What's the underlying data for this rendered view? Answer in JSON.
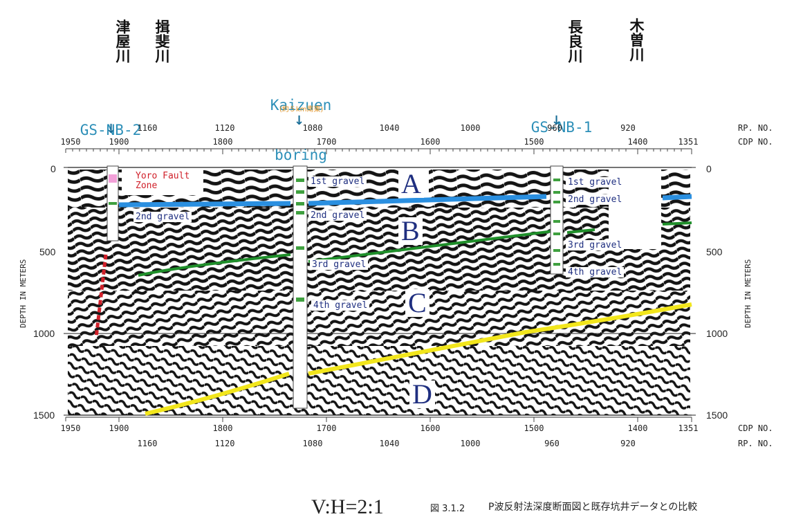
{
  "rivers": [
    {
      "label": "津屋川"
    },
    {
      "label": "揖斐川"
    },
    {
      "label": "長良川"
    },
    {
      "label": "木曽川"
    }
  ],
  "borings": [
    {
      "name": "GS-NB-2",
      "sub": "boring"
    },
    {
      "name": "Kaizuen",
      "sub": "boring",
      "note": "(約５km南東)"
    },
    {
      "name": "GS-NB-1",
      "sub": "boring"
    }
  ],
  "axes": {
    "rp_no_label": "RP. NO.",
    "cdp_no_label": "CDP NO.",
    "depth_title": "DEPTH IN METERS",
    "top_rp_ticks": [
      "1160",
      "1120",
      "1080",
      "1040",
      "1000",
      "960",
      "920",
      "1351"
    ],
    "top_cdp_ticks": [
      "1950",
      "1900",
      "1800",
      "1700",
      "1600",
      "1500",
      "1400"
    ],
    "bottom_cdp_ticks": [
      "1950",
      "1900",
      "1800",
      "1700",
      "1600",
      "1500",
      "1400",
      "1351"
    ],
    "bottom_rp_ticks": [
      "1160",
      "1120",
      "1080",
      "1040",
      "1000",
      "960",
      "920"
    ],
    "depth_ticks": [
      "0",
      "500",
      "1000",
      "1500"
    ]
  },
  "layers": {
    "left": [
      "2nd gravel"
    ],
    "middle": [
      "1st gravel",
      "2nd gravel",
      "3rd gravel",
      "4th gravel"
    ],
    "right": [
      "1st gravel",
      "2nd gravel",
      "3rd gravel",
      "4th gravel"
    ]
  },
  "zones": [
    "A",
    "B",
    "C",
    "D"
  ],
  "fault": {
    "label": "Yoro Fault\nZone"
  },
  "ratio": "V:H=2:1",
  "caption": {
    "fig_no": "図 3.1.2",
    "title": "P波反射法深度断面図と既存坑井データとの比較"
  },
  "colors": {
    "blue_horizon": "#2a8fe0",
    "green_horizon": "#1f8f2a",
    "yellow_horizon": "#f2e61c",
    "fault": "#d0202a",
    "label": "#1f2f80",
    "boring": "#2d8fb8"
  }
}
